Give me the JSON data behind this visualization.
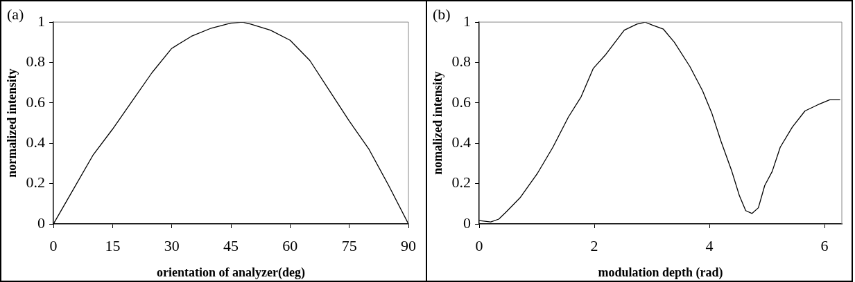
{
  "chart_data": [
    {
      "type": "line",
      "xlabel": "orientation of analyzer(deg)",
      "ylabel": "normalized intensity",
      "annotations": [
        "(a)"
      ],
      "grid": false,
      "legend": false,
      "marker": "none",
      "line_style": "solid",
      "xlim": [
        0,
        90
      ],
      "xticks": [
        0,
        15,
        30,
        45,
        60,
        75,
        90
      ],
      "ylim": [
        0,
        1
      ],
      "yticks": [
        0,
        0.2,
        0.4,
        0.6,
        0.8,
        1
      ],
      "series": [
        {
          "color": "#000000",
          "x": [
            0,
            5,
            10,
            15,
            20,
            25,
            30,
            35,
            40,
            45,
            48,
            50,
            55,
            60,
            65,
            70,
            75,
            80,
            85,
            90
          ],
          "values": [
            0,
            0.17,
            0.34,
            0.47,
            0.61,
            0.75,
            0.87,
            0.93,
            0.97,
            0.995,
            1,
            0.99,
            0.96,
            0.91,
            0.81,
            0.66,
            0.51,
            0.37,
            0.19,
            0
          ]
        }
      ]
    },
    {
      "type": "line",
      "xlabel": "modulation depth (rad)",
      "ylabel": "nomalized intensity",
      "annotations": [
        "(b)"
      ],
      "grid": false,
      "legend": false,
      "marker": "none",
      "line_style": "solid",
      "xlim": [
        0,
        6.3
      ],
      "xticks": [
        0,
        2,
        4,
        6
      ],
      "ylim": [
        0,
        1
      ],
      "yticks": [
        0,
        0.2,
        0.4,
        0.6,
        0.8,
        1
      ],
      "series": [
        {
          "color": "#000000",
          "x": [
            0,
            0.2,
            0.34,
            0.47,
            0.71,
            1.01,
            1.28,
            1.55,
            1.77,
            1.98,
            2.2,
            2.52,
            2.74,
            2.88,
            3.01,
            3.2,
            3.39,
            3.66,
            3.88,
            4.04,
            4.2,
            4.39,
            4.52,
            4.63,
            4.74,
            4.85,
            4.96,
            5.09,
            5.23,
            5.44,
            5.66,
            5.88,
            6.09,
            6.27
          ],
          "values": [
            0.017,
            0.01,
            0.024,
            0.06,
            0.13,
            0.25,
            0.38,
            0.53,
            0.63,
            0.77,
            0.84,
            0.96,
            0.99,
            1,
            0.985,
            0.965,
            0.9,
            0.78,
            0.66,
            0.55,
            0.41,
            0.26,
            0.14,
            0.066,
            0.052,
            0.08,
            0.19,
            0.26,
            0.38,
            0.48,
            0.56,
            0.59,
            0.615,
            0.615
          ]
        }
      ]
    }
  ]
}
